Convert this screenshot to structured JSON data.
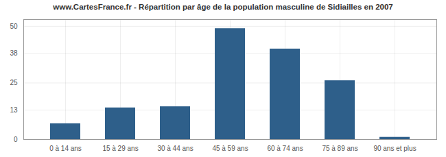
{
  "chart_data": {
    "type": "bar",
    "title": "www.CartesFrance.fr - Répartition par âge de la population masculine de Sidiailles en 2007",
    "categories": [
      "0 à 14 ans",
      "15 à 29 ans",
      "30 à 44 ans",
      "45 à 59 ans",
      "60 à 74 ans",
      "75 à 89 ans",
      "90 ans et plus"
    ],
    "values": [
      7,
      14,
      14.5,
      49,
      40,
      26,
      1
    ],
    "color": "#2e5f8a",
    "ylim": [
      0,
      53
    ],
    "yticks": [
      0,
      13,
      25,
      38,
      50
    ],
    "grid": true
  }
}
